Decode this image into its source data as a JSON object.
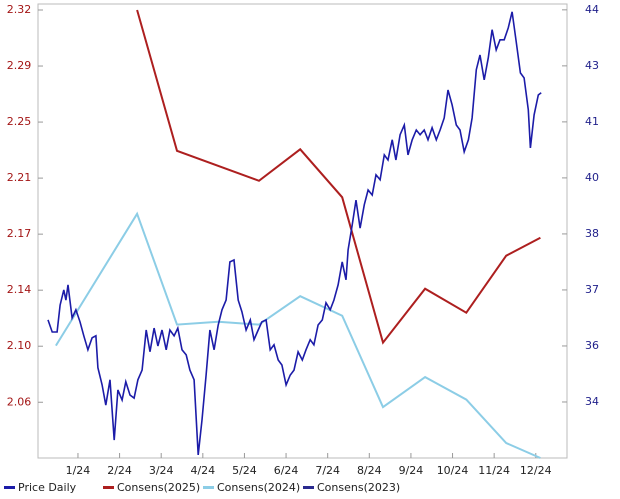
{
  "chart_data": {
    "type": "line",
    "xlim": [
      0.04,
      12.75
    ],
    "xticks": [
      {
        "value": 1,
        "label": "1/24"
      },
      {
        "value": 2,
        "label": "2/24"
      },
      {
        "value": 3,
        "label": "3/24"
      },
      {
        "value": 4,
        "label": "4/24"
      },
      {
        "value": 5,
        "label": "5/24"
      },
      {
        "value": 6,
        "label": "6/24"
      },
      {
        "value": 7,
        "label": "7/24"
      },
      {
        "value": 8,
        "label": "8/24"
      },
      {
        "value": 9,
        "label": "9/24"
      },
      {
        "value": 10,
        "label": "10/24"
      },
      {
        "value": 11,
        "label": "11/24"
      },
      {
        "value": 12,
        "label": "12/24"
      }
    ],
    "ylim": [
      2.024,
      2.327
    ],
    "yticks": [
      {
        "value": 2.323,
        "label": "2.32"
      },
      {
        "value": 2.2856,
        "label": "2.29"
      },
      {
        "value": 2.2482,
        "label": "2.25"
      },
      {
        "value": 2.2108,
        "label": "2.21"
      },
      {
        "value": 2.1734,
        "label": "2.17"
      },
      {
        "value": 2.136,
        "label": "2.14"
      },
      {
        "value": 2.0986,
        "label": "2.10"
      },
      {
        "value": 2.0612,
        "label": "2.06"
      }
    ],
    "y2lim": [
      32.68,
      44.35
    ],
    "y2ticks": [
      {
        "value": 44.2,
        "label": "44"
      },
      {
        "value": 42.76,
        "label": "43"
      },
      {
        "value": 41.32,
        "label": "41"
      },
      {
        "value": 39.88,
        "label": "40"
      },
      {
        "value": 38.44,
        "label": "38"
      },
      {
        "value": 37.0,
        "label": "37"
      },
      {
        "value": 35.56,
        "label": "36"
      },
      {
        "value": 34.12,
        "label": "34"
      }
    ],
    "series": [
      {
        "name": "Price Daily",
        "color": "#1c1ca8",
        "axis": "y2",
        "x": [
          0.28,
          0.38,
          0.5,
          0.57,
          0.66,
          0.71,
          0.76,
          0.86,
          0.95,
          1.05,
          1.14,
          1.24,
          1.34,
          1.43,
          1.48,
          1.58,
          1.67,
          1.77,
          1.87,
          1.96,
          2.06,
          2.15,
          2.25,
          2.35,
          2.44,
          2.54,
          2.64,
          2.73,
          2.83,
          2.92,
          3.02,
          3.12,
          3.21,
          3.31,
          3.4,
          3.5,
          3.6,
          3.69,
          3.79,
          3.89,
          3.98,
          4.08,
          4.17,
          4.27,
          4.37,
          4.46,
          4.56,
          4.65,
          4.75,
          4.85,
          4.94,
          5.04,
          5.14,
          5.23,
          5.33,
          5.42,
          5.52,
          5.62,
          5.71,
          5.81,
          5.9,
          6.0,
          6.1,
          6.19,
          6.29,
          6.39,
          6.48,
          6.58,
          6.67,
          6.77,
          6.87,
          6.96,
          7.06,
          7.15,
          7.25,
          7.35,
          7.44,
          7.49,
          7.59,
          7.68,
          7.78,
          7.88,
          7.97,
          8.07,
          8.16,
          8.26,
          8.36,
          8.45,
          8.55,
          8.64,
          8.74,
          8.84,
          8.93,
          9.03,
          9.13,
          9.22,
          9.32,
          9.41,
          9.51,
          9.61,
          9.7,
          9.8,
          9.89,
          9.99,
          10.09,
          10.18,
          10.28,
          10.38,
          10.47,
          10.57,
          10.66,
          10.76,
          10.86,
          10.95,
          11.05,
          11.14,
          11.24,
          11.34,
          11.43,
          11.53,
          11.63,
          11.72,
          11.82,
          11.87,
          11.96,
          12.06,
          12.13
        ],
        "values": [
          36.23,
          35.92,
          35.92,
          36.61,
          37.0,
          36.74,
          37.13,
          36.28,
          36.49,
          36.18,
          35.82,
          35.46,
          35.77,
          35.82,
          35.0,
          34.56,
          34.04,
          34.69,
          33.14,
          34.43,
          34.17,
          34.64,
          34.3,
          34.22,
          34.69,
          34.94,
          35.97,
          35.41,
          36.02,
          35.56,
          35.97,
          35.46,
          35.97,
          35.82,
          36.02,
          35.46,
          35.33,
          34.94,
          34.69,
          32.76,
          33.66,
          34.81,
          35.97,
          35.46,
          36.1,
          36.49,
          36.74,
          37.72,
          37.77,
          36.74,
          36.44,
          35.97,
          36.23,
          35.72,
          35.97,
          36.18,
          36.23,
          35.46,
          35.59,
          35.2,
          35.07,
          34.56,
          34.81,
          34.94,
          35.41,
          35.2,
          35.46,
          35.72,
          35.59,
          36.1,
          36.23,
          36.67,
          36.49,
          36.74,
          37.13,
          37.72,
          37.26,
          38.03,
          38.67,
          39.31,
          38.59,
          39.19,
          39.57,
          39.44,
          39.96,
          39.83,
          40.47,
          40.34,
          40.86,
          40.34,
          40.99,
          41.24,
          40.47,
          40.86,
          41.11,
          40.99,
          41.11,
          40.86,
          41.17,
          40.86,
          41.11,
          41.42,
          42.14,
          41.76,
          41.24,
          41.11,
          40.55,
          40.86,
          41.42,
          42.66,
          43.04,
          42.4,
          42.97,
          43.69,
          43.17,
          43.43,
          43.43,
          43.74,
          44.15,
          43.38,
          42.58,
          42.45,
          41.63,
          40.65,
          41.5,
          42.01,
          42.07
        ]
      },
      {
        "name": "Consens(2025)",
        "color": "#ad1f1f",
        "x": [
          2.42,
          3.38,
          5.35,
          6.34,
          7.35,
          8.33,
          9.34,
          10.33,
          11.29,
          12.11
        ],
        "values": [
          2.323,
          2.229,
          2.209,
          2.23,
          2.198,
          2.101,
          2.137,
          2.121,
          2.159,
          2.171
        ]
      },
      {
        "name": "Consens(2024)",
        "color": "#8ccde6",
        "x": [
          0.47,
          2.42,
          3.38,
          4.37,
          5.35,
          6.34,
          7.35,
          8.33,
          9.34,
          10.33,
          11.29,
          12.11
        ],
        "values": [
          2.099,
          2.187,
          2.113,
          2.115,
          2.113,
          2.132,
          2.119,
          2.058,
          2.078,
          2.063,
          2.034,
          2.024
        ]
      },
      {
        "name": "Consens(2023)",
        "color": "#2a2a8f",
        "x": [],
        "values": []
      }
    ]
  }
}
